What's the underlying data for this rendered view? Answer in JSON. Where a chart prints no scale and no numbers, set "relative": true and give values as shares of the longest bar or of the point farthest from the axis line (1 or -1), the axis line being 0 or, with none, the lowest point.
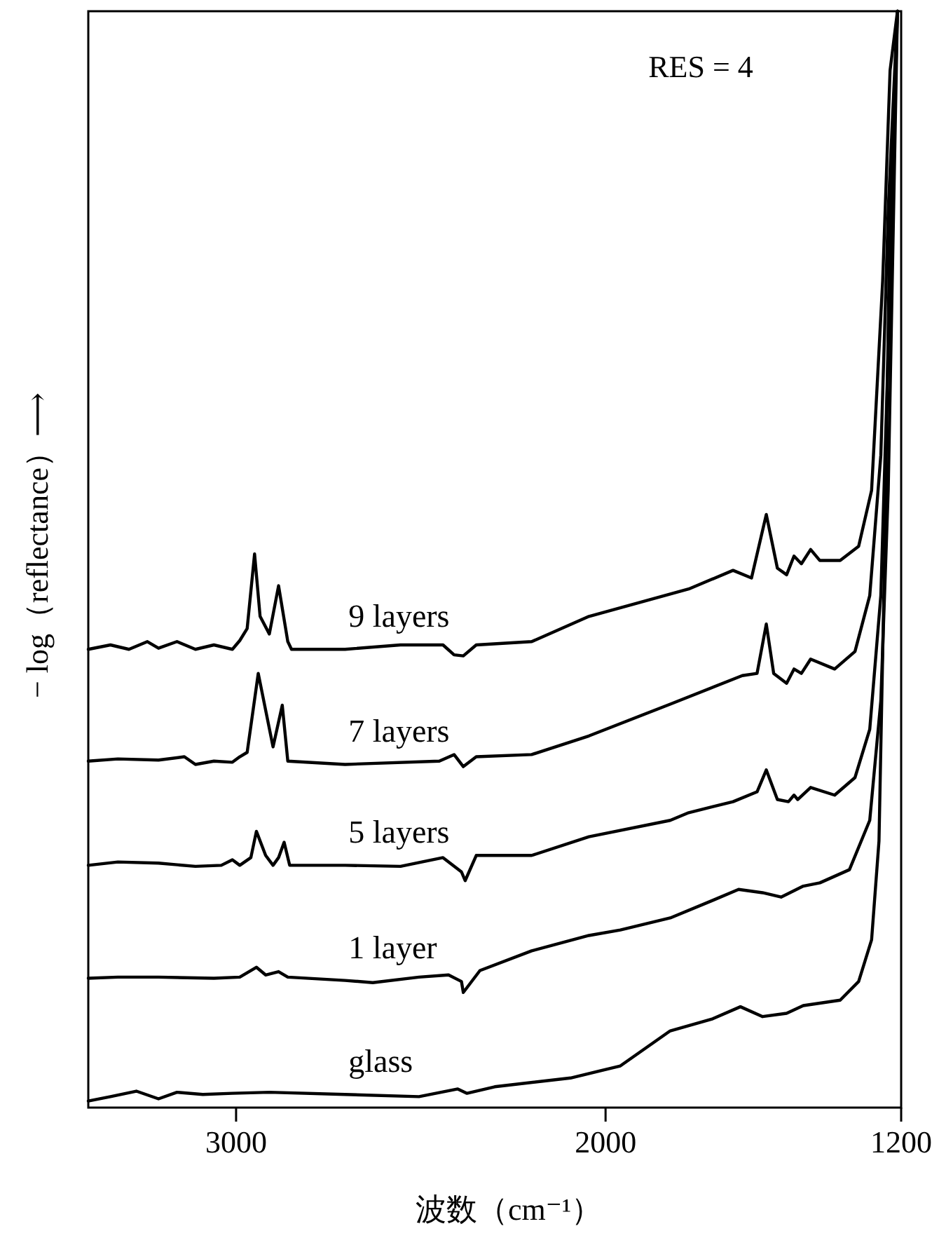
{
  "chart_data": {
    "type": "line",
    "relative": true,
    "xlabel": "波数（cm⁻¹）",
    "ylabel": "− log（reflectance）⟶",
    "annotations": [
      "RES = 4"
    ],
    "xlim": [
      3400,
      1200
    ],
    "xticks": [
      3000,
      2000,
      1200
    ],
    "tick_labels": "x",
    "grid": false,
    "line_style": "solid",
    "series": [
      {
        "name": "9 layers",
        "color": "#000000",
        "x": [
          3400,
          3340,
          3290,
          3240,
          3210,
          3160,
          3110,
          3060,
          3010,
          2990,
          2970,
          2950,
          2935,
          2910,
          2885,
          2860,
          2850,
          2705,
          2555,
          2440,
          2410,
          2385,
          2350,
          2200,
          2045,
          1775,
          1655,
          1605,
          1565,
          1535,
          1510,
          1490,
          1470,
          1445,
          1420,
          1365,
          1315,
          1280,
          1250,
          1230,
          1210
        ],
        "values": [
          0.418,
          0.422,
          0.418,
          0.425,
          0.419,
          0.425,
          0.418,
          0.422,
          0.418,
          0.426,
          0.437,
          0.505,
          0.448,
          0.432,
          0.476,
          0.425,
          0.418,
          0.418,
          0.422,
          0.422,
          0.413,
          0.412,
          0.422,
          0.425,
          0.448,
          0.473,
          0.49,
          0.483,
          0.541,
          0.492,
          0.486,
          0.503,
          0.496,
          0.509,
          0.499,
          0.499,
          0.512,
          0.563,
          0.754,
          0.946,
          1
        ]
      },
      {
        "name": "7 layers",
        "color": "#000000",
        "x": [
          3400,
          3320,
          3210,
          3140,
          3110,
          3060,
          3010,
          2990,
          2970,
          2940,
          2900,
          2875,
          2860,
          2705,
          2450,
          2410,
          2385,
          2350,
          2200,
          2045,
          1825,
          1630,
          1590,
          1565,
          1545,
          1510,
          1490,
          1470,
          1445,
          1380,
          1325,
          1285,
          1255,
          1235,
          1210
        ],
        "values": [
          0.316,
          0.318,
          0.317,
          0.32,
          0.313,
          0.316,
          0.315,
          0.32,
          0.324,
          0.396,
          0.329,
          0.367,
          0.316,
          0.313,
          0.316,
          0.322,
          0.311,
          0.32,
          0.322,
          0.339,
          0.368,
          0.394,
          0.396,
          0.441,
          0.396,
          0.387,
          0.4,
          0.396,
          0.409,
          0.4,
          0.416,
          0.467,
          0.595,
          0.818,
          1
        ]
      },
      {
        "name": "5 layers",
        "color": "#000000",
        "x": [
          3400,
          3320,
          3210,
          3110,
          3040,
          3010,
          2990,
          2960,
          2945,
          2920,
          2900,
          2885,
          2870,
          2855,
          2705,
          2555,
          2440,
          2390,
          2380,
          2350,
          2200,
          2045,
          1825,
          1775,
          1655,
          1590,
          1565,
          1535,
          1505,
          1490,
          1480,
          1445,
          1380,
          1325,
          1285,
          1255,
          1235,
          1210
        ],
        "values": [
          0.221,
          0.224,
          0.223,
          0.22,
          0.221,
          0.226,
          0.221,
          0.228,
          0.252,
          0.23,
          0.221,
          0.228,
          0.242,
          0.221,
          0.221,
          0.22,
          0.228,
          0.215,
          0.207,
          0.23,
          0.23,
          0.247,
          0.262,
          0.269,
          0.279,
          0.288,
          0.308,
          0.281,
          0.279,
          0.285,
          0.281,
          0.292,
          0.285,
          0.301,
          0.345,
          0.467,
          0.691,
          1
        ]
      },
      {
        "name": "1 layer",
        "color": "#000000",
        "x": [
          3400,
          3320,
          3210,
          3060,
          2990,
          2945,
          2920,
          2885,
          2860,
          2705,
          2630,
          2505,
          2425,
          2390,
          2385,
          2340,
          2200,
          2045,
          1960,
          1825,
          1710,
          1640,
          1575,
          1525,
          1465,
          1420,
          1340,
          1285,
          1255,
          1235,
          1210
        ],
        "values": [
          0.118,
          0.119,
          0.119,
          0.118,
          0.119,
          0.128,
          0.121,
          0.124,
          0.119,
          0.116,
          0.114,
          0.119,
          0.121,
          0.115,
          0.105,
          0.125,
          0.143,
          0.157,
          0.162,
          0.173,
          0.189,
          0.199,
          0.196,
          0.192,
          0.202,
          0.205,
          0.217,
          0.262,
          0.371,
          0.563,
          1
        ]
      },
      {
        "name": "glass",
        "color": "#000000",
        "x": [
          3400,
          3340,
          3270,
          3210,
          3160,
          3090,
          3010,
          2910,
          2705,
          2505,
          2400,
          2375,
          2300,
          2095,
          1960,
          1825,
          1710,
          1635,
          1575,
          1510,
          1465,
          1365,
          1315,
          1280,
          1260,
          1245,
          1230,
          1210
        ],
        "values": [
          0.006,
          0.01,
          0.015,
          0.008,
          0.014,
          0.012,
          0.013,
          0.014,
          0.012,
          0.01,
          0.017,
          0.013,
          0.019,
          0.027,
          0.038,
          0.07,
          0.081,
          0.092,
          0.083,
          0.086,
          0.093,
          0.098,
          0.115,
          0.153,
          0.243,
          0.499,
          0.818,
          1
        ]
      }
    ]
  }
}
